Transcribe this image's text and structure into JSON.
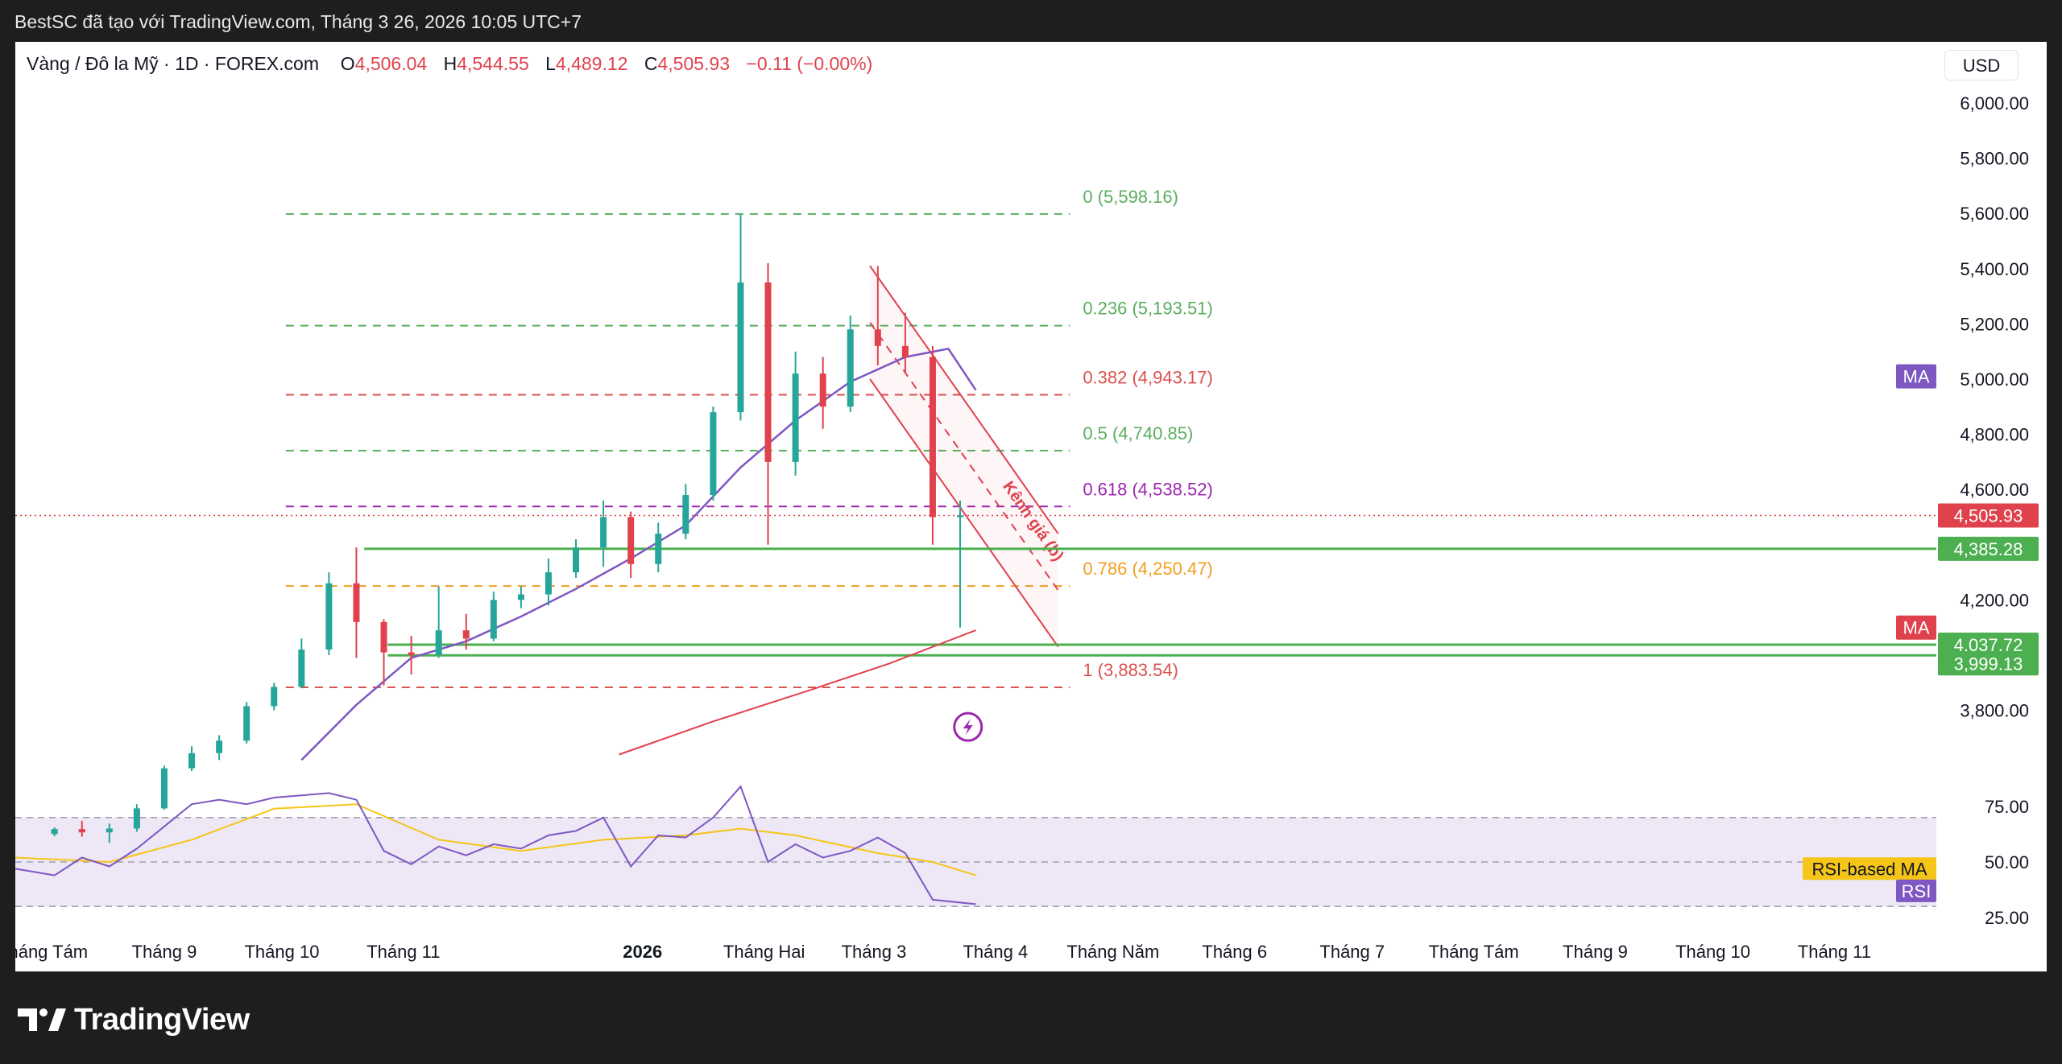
{
  "topbar": {
    "caption": "BestSC đã tạo với TradingView.com, Tháng 3 26, 2026 10:05 UTC+7"
  },
  "header": {
    "symbol": "Vàng / Đô la Mỹ · 1D · FOREX.com",
    "o_label": "O",
    "o_value": "4,506.04",
    "h_label": "H",
    "h_value": "4,544.55",
    "l_label": "L",
    "l_value": "4,489.12",
    "c_label": "C",
    "c_value": "4,505.93",
    "change": "−0.11 (−0.00%)",
    "currency": "USD"
  },
  "footer": {
    "brand": "TradingView"
  },
  "colors": {
    "up": "#26a69a",
    "down": "#e0424d",
    "ma_purple": "#7e57c2",
    "ma_red": "#e0424d",
    "fib_green": "#5bae5f",
    "fib_red": "#d9534f",
    "fib_purple": "#9c27b0",
    "fib_orange": "#f0a020",
    "support_green": "#4caf50",
    "rsi_fill": "#ede7f6",
    "rsi_ma": "#f5c518",
    "channel": "#e0424d"
  },
  "chart_data": {
    "type": "candlestick",
    "price_axis": {
      "range": [
        3600,
        6100
      ],
      "ticks": [
        "6,000.00",
        "5,800.00",
        "5,600.00",
        "5,400.00",
        "5,200.00",
        "5,000.00",
        "4,800.00",
        "4,600.00",
        "4,200.00",
        "3,800.00"
      ],
      "tick_values": [
        6000,
        5800,
        5600,
        5400,
        5200,
        5000,
        4800,
        4600,
        4200,
        3800
      ]
    },
    "rsi_axis": {
      "range": [
        15,
        85
      ],
      "ticks": [
        "75.00",
        "50.00",
        "25.00"
      ],
      "tick_values": [
        75,
        50,
        25
      ],
      "bands": [
        70,
        50,
        30
      ]
    },
    "time_axis": {
      "labels": [
        "Tháng Tám",
        "Tháng 9",
        "Tháng 10",
        "Tháng 11",
        "2026",
        "Tháng Hai",
        "Tháng 3",
        "Tháng 4",
        "Tháng Năm",
        "Tháng 6",
        "Tháng 7",
        "Tháng Tám",
        "Tháng 9",
        "Tháng 10",
        "Tháng 11"
      ],
      "dates": [
        "2025-08-01",
        "2025-09-01",
        "2025-10-01",
        "2025-11-01",
        "2026-01-01",
        "2026-02-01",
        "2026-03-01",
        "2026-04-01",
        "2026-05-01",
        "2026-06-01",
        "2026-07-01",
        "2026-08-01",
        "2026-09-01",
        "2026-10-01",
        "2026-11-01"
      ],
      "bold": "2026",
      "range": [
        "2025-07-25",
        "2026-11-27"
      ]
    },
    "fib_levels": [
      {
        "label": "0 (5,598.16)",
        "value": 5598.16,
        "color": "#5bae5f"
      },
      {
        "label": "0.236 (5,193.51)",
        "value": 5193.51,
        "color": "#5bae5f"
      },
      {
        "label": "0.382 (4,943.17)",
        "value": 4943.17,
        "color": "#d9534f"
      },
      {
        "label": "0.5 (4,740.85)",
        "value": 4740.85,
        "color": "#5bae5f"
      },
      {
        "label": "0.618 (4,538.52)",
        "value": 4538.52,
        "color": "#9c27b0"
      },
      {
        "label": "0.786 (4,250.47)",
        "value": 4250.47,
        "color": "#f0a020"
      },
      {
        "label": "1 (3,883.54)",
        "value": 3883.54,
        "color": "#d9534f"
      }
    ],
    "fib_range": [
      "2025-10-02",
      "2026-04-20"
    ],
    "support_lines": [
      {
        "label": "4,385.28",
        "value": 4385.28,
        "start": "2025-10-22"
      },
      {
        "label": "4,037.72",
        "value": 4037.72,
        "start": "2025-10-28"
      },
      {
        "label": "3,999.13",
        "value": 3999.13,
        "start": "2025-10-28"
      }
    ],
    "last_price": {
      "label": "4,505.93",
      "value": 4505.93
    },
    "ma_badges": [
      "MA",
      "MA"
    ],
    "channel": {
      "label": "Kênh giá (b)",
      "upper": [
        [
          "2026-02-28",
          5410
        ],
        [
          "2026-04-17",
          4440
        ]
      ],
      "lower": [
        [
          "2026-02-28",
          5000
        ],
        [
          "2026-04-17",
          4030
        ]
      ]
    },
    "candles": [
      [
        "2025-08-04",
        3352,
        3376,
        3344,
        3370
      ],
      [
        "2025-08-11",
        3370,
        3400,
        3342,
        3358
      ],
      [
        "2025-08-18",
        3358,
        3390,
        3320,
        3372
      ],
      [
        "2025-08-25",
        3372,
        3460,
        3360,
        3445
      ],
      [
        "2025-09-01",
        3445,
        3600,
        3440,
        3590
      ],
      [
        "2025-09-08",
        3590,
        3670,
        3580,
        3645
      ],
      [
        "2025-09-15",
        3645,
        3710,
        3620,
        3690
      ],
      [
        "2025-09-22",
        3690,
        3830,
        3680,
        3815
      ],
      [
        "2025-09-29",
        3815,
        3900,
        3800,
        3885
      ],
      [
        "2025-10-06",
        3885,
        4060,
        3880,
        4020
      ],
      [
        "2025-10-13",
        4020,
        4300,
        4000,
        4260
      ],
      [
        "2025-10-20",
        4260,
        4390,
        3990,
        4120
      ],
      [
        "2025-10-27",
        4120,
        4130,
        3890,
        4010
      ],
      [
        "2025-11-03",
        4010,
        4070,
        3930,
        4000
      ],
      [
        "2025-11-10",
        4000,
        4250,
        3990,
        4090
      ],
      [
        "2025-11-17",
        4090,
        4150,
        4020,
        4060
      ],
      [
        "2025-11-24",
        4060,
        4230,
        4050,
        4200
      ],
      [
        "2025-12-01",
        4200,
        4250,
        4170,
        4220
      ],
      [
        "2025-12-08",
        4220,
        4350,
        4180,
        4300
      ],
      [
        "2025-12-15",
        4300,
        4420,
        4280,
        4390
      ],
      [
        "2025-12-22",
        4390,
        4560,
        4320,
        4500
      ],
      [
        "2025-12-29",
        4500,
        4520,
        4280,
        4330
      ],
      [
        "2026-01-05",
        4330,
        4480,
        4300,
        4440
      ],
      [
        "2026-01-12",
        4440,
        4620,
        4420,
        4580
      ],
      [
        "2026-01-19",
        4580,
        4900,
        4560,
        4880
      ],
      [
        "2026-01-26",
        4880,
        5598,
        4850,
        5350
      ],
      [
        "2026-02-02",
        5350,
        5420,
        4400,
        4700
      ],
      [
        "2026-02-09",
        4700,
        5100,
        4650,
        5020
      ],
      [
        "2026-02-16",
        5020,
        5080,
        4820,
        4900
      ],
      [
        "2026-02-23",
        4900,
        5230,
        4880,
        5180
      ],
      [
        "2026-03-02",
        5180,
        5410,
        5050,
        5120
      ],
      [
        "2026-03-09",
        5120,
        5240,
        5020,
        5080
      ],
      [
        "2026-03-16",
        5080,
        5120,
        4400,
        4500
      ],
      [
        "2026-03-23",
        4500,
        4560,
        4100,
        4506
      ]
    ],
    "ma_fast": [
      [
        "2025-10-06",
        3620
      ],
      [
        "2025-10-20",
        3820
      ],
      [
        "2025-11-03",
        3990
      ],
      [
        "2025-11-17",
        4050
      ],
      [
        "2025-12-01",
        4140
      ],
      [
        "2025-12-15",
        4240
      ],
      [
        "2025-12-29",
        4350
      ],
      [
        "2026-01-12",
        4470
      ],
      [
        "2026-01-26",
        4680
      ],
      [
        "2026-02-09",
        4850
      ],
      [
        "2026-02-23",
        4990
      ],
      [
        "2026-03-09",
        5080
      ],
      [
        "2026-03-20",
        5110
      ],
      [
        "2026-03-27",
        4960
      ]
    ],
    "ma_slow": [
      [
        "2025-12-26",
        3640
      ],
      [
        "2026-01-19",
        3760
      ],
      [
        "2026-02-12",
        3870
      ],
      [
        "2026-03-05",
        3970
      ],
      [
        "2026-03-27",
        4090
      ]
    ],
    "rsi": [
      [
        "2025-07-25",
        47
      ],
      [
        "2025-08-04",
        44
      ],
      [
        "2025-08-11",
        52
      ],
      [
        "2025-08-18",
        48
      ],
      [
        "2025-08-25",
        56
      ],
      [
        "2025-09-01",
        66
      ],
      [
        "2025-09-08",
        76
      ],
      [
        "2025-09-15",
        78
      ],
      [
        "2025-09-22",
        76
      ],
      [
        "2025-09-29",
        79
      ],
      [
        "2025-10-06",
        80
      ],
      [
        "2025-10-13",
        81
      ],
      [
        "2025-10-20",
        78
      ],
      [
        "2025-10-27",
        55
      ],
      [
        "2025-11-03",
        49
      ],
      [
        "2025-11-10",
        57
      ],
      [
        "2025-11-17",
        53
      ],
      [
        "2025-11-24",
        58
      ],
      [
        "2025-12-01",
        56
      ],
      [
        "2025-12-08",
        62
      ],
      [
        "2025-12-15",
        64
      ],
      [
        "2025-12-22",
        70
      ],
      [
        "2025-12-29",
        48
      ],
      [
        "2026-01-05",
        62
      ],
      [
        "2026-01-12",
        61
      ],
      [
        "2026-01-19",
        70
      ],
      [
        "2026-01-26",
        84
      ],
      [
        "2026-02-02",
        50
      ],
      [
        "2026-02-09",
        58
      ],
      [
        "2026-02-16",
        52
      ],
      [
        "2026-02-23",
        55
      ],
      [
        "2026-03-02",
        61
      ],
      [
        "2026-03-09",
        54
      ],
      [
        "2026-03-16",
        33
      ],
      [
        "2026-03-27",
        31
      ]
    ],
    "rsi_ma": [
      [
        "2025-07-25",
        52
      ],
      [
        "2025-08-18",
        50
      ],
      [
        "2025-09-08",
        60
      ],
      [
        "2025-09-29",
        74
      ],
      [
        "2025-10-20",
        76
      ],
      [
        "2025-11-10",
        60
      ],
      [
        "2025-12-01",
        55
      ],
      [
        "2025-12-22",
        60
      ],
      [
        "2026-01-12",
        62
      ],
      [
        "2026-01-26",
        65
      ],
      [
        "2026-02-09",
        62
      ],
      [
        "2026-03-02",
        54
      ],
      [
        "2026-03-16",
        50
      ],
      [
        "2026-03-27",
        44
      ]
    ],
    "rsi_badges": [
      "RSI-based MA",
      "RSI"
    ]
  }
}
